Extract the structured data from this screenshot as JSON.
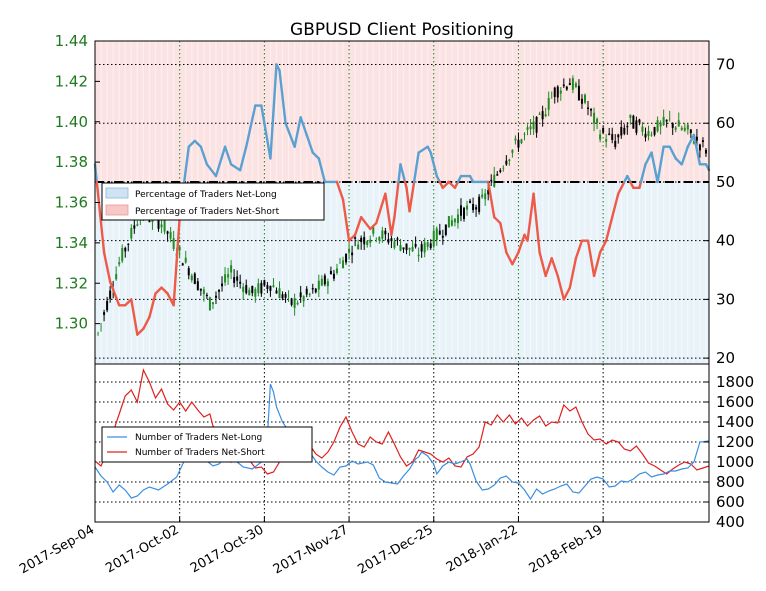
{
  "chart_data": [
    {
      "type": "line",
      "title": "GBPUSD Client Positioning",
      "price_axis": {
        "side": "left",
        "range": [
          1.28,
          1.44
        ],
        "ticks": [
          "1.30",
          "1.32",
          "1.34",
          "1.36",
          "1.38",
          "1.40",
          "1.42",
          "1.44"
        ]
      },
      "ratio_axis": {
        "side": "right",
        "range": [
          19,
          74
        ],
        "ticks": [
          "20",
          "30",
          "40",
          "50",
          "60",
          "70"
        ]
      },
      "x_range_days": [
        0,
        203
      ],
      "x_ticks": [
        {
          "day": 0,
          "label": "2017-Sep-04"
        },
        {
          "day": 28,
          "label": "2017-Oct-02"
        },
        {
          "day": 56,
          "label": "2017-Oct-30"
        },
        {
          "day": 84,
          "label": "2017-Nov-27"
        },
        {
          "day": 112,
          "label": "2017-Dec-25"
        },
        {
          "day": 140,
          "label": "2018-Jan-22"
        },
        {
          "day": 168,
          "label": "2018-Feb-19"
        }
      ],
      "reference_line": 50,
      "legend": {
        "placement": "left",
        "entries": [
          "Percentage of Traders Net-Long",
          "Percentage of Traders Net-Short"
        ]
      },
      "colors": {
        "net_long": "#5aa0d0",
        "net_short": "#ee5a48",
        "long_fill": "#e8f2f9",
        "short_fill": "#fbe3e3",
        "price_axis": "#1f7a1f",
        "candle_up": "#228b22",
        "candle_down": "#000000"
      },
      "series_pct_long": [
        [
          0,
          53
        ],
        [
          3,
          38
        ],
        [
          5,
          33
        ],
        [
          8,
          29
        ],
        [
          10,
          29
        ],
        [
          12,
          30
        ],
        [
          14,
          24
        ],
        [
          16,
          25
        ],
        [
          18,
          27
        ],
        [
          20,
          31
        ],
        [
          22,
          32
        ],
        [
          24,
          31
        ],
        [
          26,
          29
        ],
        [
          28,
          44
        ],
        [
          31,
          56
        ],
        [
          33,
          57
        ],
        [
          35,
          56
        ],
        [
          37,
          53
        ],
        [
          40,
          51
        ],
        [
          43,
          56
        ],
        [
          45,
          53
        ],
        [
          48,
          52
        ],
        [
          50,
          56
        ],
        [
          53,
          63
        ],
        [
          55,
          63
        ],
        [
          58,
          54
        ],
        [
          60,
          70
        ],
        [
          61,
          69
        ],
        [
          63,
          60
        ],
        [
          66,
          56
        ],
        [
          68,
          61
        ],
        [
          70,
          58
        ],
        [
          72,
          55
        ],
        [
          74,
          54
        ],
        [
          76,
          50
        ],
        [
          78,
          50
        ],
        [
          80,
          50
        ],
        [
          82,
          47
        ],
        [
          84,
          40
        ],
        [
          86,
          41
        ],
        [
          88,
          44
        ],
        [
          91,
          42
        ],
        [
          93,
          43
        ],
        [
          96,
          48
        ],
        [
          98,
          41
        ],
        [
          99,
          44
        ],
        [
          101,
          53
        ],
        [
          103,
          49
        ],
        [
          104,
          45
        ],
        [
          107,
          55
        ],
        [
          110,
          56
        ],
        [
          111,
          55
        ],
        [
          113,
          51
        ],
        [
          115,
          49
        ],
        [
          117,
          50
        ],
        [
          119,
          49
        ],
        [
          121,
          51
        ],
        [
          124,
          51
        ],
        [
          125,
          50
        ],
        [
          128,
          50
        ],
        [
          130,
          50
        ],
        [
          132,
          44
        ],
        [
          134,
          43
        ],
        [
          136,
          38
        ],
        [
          138,
          36
        ],
        [
          140,
          38
        ],
        [
          142,
          41
        ],
        [
          143,
          40
        ],
        [
          145,
          48
        ],
        [
          147,
          38
        ],
        [
          149,
          34
        ],
        [
          151,
          37
        ],
        [
          153,
          34
        ],
        [
          155,
          30
        ],
        [
          157,
          32
        ],
        [
          159,
          37
        ],
        [
          161,
          40
        ],
        [
          163,
          40
        ],
        [
          165,
          34
        ],
        [
          167,
          38
        ],
        [
          169,
          40
        ],
        [
          171,
          44
        ],
        [
          173,
          48
        ],
        [
          174,
          49
        ],
        [
          176,
          51
        ],
        [
          178,
          49
        ],
        [
          180,
          49
        ],
        [
          182,
          53
        ],
        [
          184,
          55
        ],
        [
          186,
          50
        ],
        [
          188,
          56
        ],
        [
          190,
          56
        ],
        [
          192,
          54
        ],
        [
          194,
          53
        ],
        [
          196,
          56
        ],
        [
          198,
          58
        ],
        [
          200,
          53
        ],
        [
          202,
          53
        ],
        [
          203,
          52
        ]
      ],
      "series_traders_net_long": [
        [
          0,
          950
        ],
        [
          2,
          860
        ],
        [
          4,
          800
        ],
        [
          6,
          700
        ],
        [
          8,
          770
        ],
        [
          10,
          720
        ],
        [
          12,
          640
        ],
        [
          14,
          660
        ],
        [
          16,
          720
        ],
        [
          18,
          750
        ],
        [
          21,
          720
        ],
        [
          24,
          780
        ],
        [
          27,
          850
        ],
        [
          29,
          980
        ],
        [
          31,
          1080
        ],
        [
          33,
          1100
        ],
        [
          35,
          1010
        ],
        [
          37,
          1010
        ],
        [
          39,
          960
        ],
        [
          41,
          980
        ],
        [
          44,
          1070
        ],
        [
          47,
          1000
        ],
        [
          49,
          950
        ],
        [
          52,
          930
        ],
        [
          55,
          1000
        ],
        [
          57,
          1250
        ],
        [
          58,
          1780
        ],
        [
          59,
          1700
        ],
        [
          60,
          1550
        ],
        [
          62,
          1400
        ],
        [
          64,
          1310
        ],
        [
          65,
          1260
        ],
        [
          67,
          1180
        ],
        [
          69,
          1100
        ],
        [
          71,
          1100
        ],
        [
          73,
          1010
        ],
        [
          75,
          950
        ],
        [
          77,
          900
        ],
        [
          79,
          870
        ],
        [
          81,
          950
        ],
        [
          83,
          960
        ],
        [
          85,
          1010
        ],
        [
          87,
          980
        ],
        [
          90,
          1000
        ],
        [
          92,
          970
        ],
        [
          94,
          840
        ],
        [
          96,
          800
        ],
        [
          98,
          790
        ],
        [
          100,
          780
        ],
        [
          102,
          860
        ],
        [
          104,
          930
        ],
        [
          106,
          1030
        ],
        [
          107,
          1050
        ],
        [
          108,
          1100
        ],
        [
          110,
          1060
        ],
        [
          112,
          980
        ],
        [
          113,
          880
        ],
        [
          115,
          960
        ],
        [
          117,
          1000
        ],
        [
          119,
          980
        ],
        [
          121,
          1000
        ],
        [
          123,
          1030
        ],
        [
          124,
          980
        ],
        [
          126,
          810
        ],
        [
          128,
          720
        ],
        [
          130,
          730
        ],
        [
          132,
          770
        ],
        [
          134,
          840
        ],
        [
          136,
          860
        ],
        [
          138,
          800
        ],
        [
          140,
          790
        ],
        [
          142,
          720
        ],
        [
          144,
          630
        ],
        [
          146,
          730
        ],
        [
          148,
          680
        ],
        [
          150,
          710
        ],
        [
          152,
          730
        ],
        [
          154,
          760
        ],
        [
          156,
          780
        ],
        [
          158,
          700
        ],
        [
          160,
          690
        ],
        [
          162,
          760
        ],
        [
          164,
          830
        ],
        [
          166,
          850
        ],
        [
          168,
          830
        ],
        [
          170,
          750
        ],
        [
          172,
          760
        ],
        [
          174,
          810
        ],
        [
          176,
          800
        ],
        [
          178,
          830
        ],
        [
          180,
          880
        ],
        [
          182,
          900
        ],
        [
          184,
          850
        ],
        [
          186,
          870
        ],
        [
          188,
          880
        ],
        [
          190,
          910
        ],
        [
          192,
          910
        ],
        [
          194,
          930
        ],
        [
          196,
          940
        ],
        [
          198,
          1000
        ],
        [
          200,
          1200
        ],
        [
          203,
          1210
        ]
      ],
      "series_traders_net_short": [
        [
          0,
          1010
        ],
        [
          2,
          960
        ],
        [
          4,
          1100
        ],
        [
          6,
          1300
        ],
        [
          8,
          1480
        ],
        [
          10,
          1660
        ],
        [
          12,
          1720
        ],
        [
          14,
          1600
        ],
        [
          16,
          1920
        ],
        [
          18,
          1800
        ],
        [
          20,
          1640
        ],
        [
          22,
          1730
        ],
        [
          24,
          1580
        ],
        [
          26,
          1520
        ],
        [
          28,
          1600
        ],
        [
          30,
          1510
        ],
        [
          32,
          1600
        ],
        [
          34,
          1520
        ],
        [
          36,
          1450
        ],
        [
          38,
          1480
        ],
        [
          39,
          1360
        ],
        [
          41,
          1300
        ],
        [
          43,
          1180
        ],
        [
          45,
          1000
        ],
        [
          47,
          1100
        ],
        [
          49,
          1050
        ],
        [
          51,
          1020
        ],
        [
          53,
          940
        ],
        [
          55,
          950
        ],
        [
          57,
          880
        ],
        [
          59,
          900
        ],
        [
          61,
          1000
        ],
        [
          63,
          1100
        ],
        [
          65,
          1140
        ],
        [
          67,
          1060
        ],
        [
          69,
          1110
        ],
        [
          71,
          1170
        ],
        [
          73,
          1080
        ],
        [
          75,
          1040
        ],
        [
          77,
          1100
        ],
        [
          79,
          1200
        ],
        [
          81,
          1350
        ],
        [
          83,
          1450
        ],
        [
          85,
          1300
        ],
        [
          87,
          1180
        ],
        [
          89,
          1150
        ],
        [
          91,
          1250
        ],
        [
          93,
          1200
        ],
        [
          95,
          1180
        ],
        [
          97,
          1300
        ],
        [
          99,
          1180
        ],
        [
          101,
          1050
        ],
        [
          103,
          960
        ],
        [
          105,
          1000
        ],
        [
          107,
          1120
        ],
        [
          109,
          1100
        ],
        [
          111,
          1080
        ],
        [
          113,
          1030
        ],
        [
          115,
          1000
        ],
        [
          117,
          1040
        ],
        [
          119,
          960
        ],
        [
          121,
          950
        ],
        [
          123,
          1050
        ],
        [
          125,
          1080
        ],
        [
          127,
          1150
        ],
        [
          129,
          1400
        ],
        [
          131,
          1370
        ],
        [
          133,
          1470
        ],
        [
          135,
          1400
        ],
        [
          137,
          1470
        ],
        [
          139,
          1380
        ],
        [
          141,
          1440
        ],
        [
          143,
          1360
        ],
        [
          145,
          1420
        ],
        [
          147,
          1460
        ],
        [
          149,
          1360
        ],
        [
          151,
          1400
        ],
        [
          153,
          1390
        ],
        [
          155,
          1570
        ],
        [
          157,
          1510
        ],
        [
          159,
          1550
        ],
        [
          161,
          1400
        ],
        [
          163,
          1280
        ],
        [
          165,
          1220
        ],
        [
          167,
          1230
        ],
        [
          169,
          1180
        ],
        [
          171,
          1220
        ],
        [
          173,
          1200
        ],
        [
          175,
          1130
        ],
        [
          177,
          1110
        ],
        [
          179,
          1160
        ],
        [
          181,
          1080
        ],
        [
          183,
          990
        ],
        [
          185,
          960
        ],
        [
          187,
          920
        ],
        [
          189,
          880
        ],
        [
          191,
          930
        ],
        [
          193,
          970
        ],
        [
          195,
          1000
        ],
        [
          197,
          980
        ],
        [
          199,
          920
        ],
        [
          201,
          940
        ],
        [
          203,
          960
        ]
      ],
      "traders_axis": {
        "side": "right",
        "range": [
          400,
          1980
        ],
        "ticks": [
          "400",
          "600",
          "800",
          "1000",
          "1200",
          "1400",
          "1600",
          "1800"
        ]
      },
      "traders_legend": {
        "placement": "left",
        "entries": [
          "Number of Traders Net-Long",
          "Number of Traders Net-Short"
        ]
      },
      "traders_colors": {
        "net_long": "#3a8fe0",
        "net_short": "#e02020"
      }
    }
  ]
}
